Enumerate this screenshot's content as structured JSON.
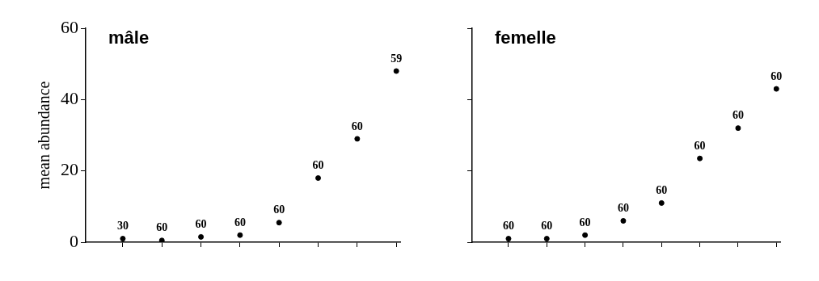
{
  "chart_data": [
    {
      "type": "scatter",
      "title": "mâle",
      "y_label": "mean abundance",
      "categories": [
        null,
        null,
        null,
        null,
        null,
        null,
        null,
        null
      ],
      "values": [
        1,
        0.5,
        1.5,
        2,
        5.5,
        18,
        29,
        48
      ],
      "sample_sizes": [
        30,
        60,
        60,
        60,
        60,
        60,
        60,
        59
      ],
      "color": "#000000",
      "marker": "circle",
      "ylim": [
        0,
        60
      ],
      "yticks": [
        0,
        20,
        40,
        60
      ],
      "grid": false,
      "tick_labels": "y"
    },
    {
      "type": "scatter",
      "title": "femelle",
      "categories": [
        null,
        null,
        null,
        null,
        null,
        null,
        null,
        null
      ],
      "values": [
        1,
        1,
        2,
        6,
        11,
        23.5,
        32,
        43
      ],
      "sample_sizes": [
        60,
        60,
        60,
        60,
        60,
        60,
        60,
        60
      ],
      "color": "#000000",
      "marker": "circle",
      "ylim": [
        0,
        60
      ],
      "yticks": [
        0,
        20,
        40,
        60
      ],
      "grid": false,
      "tick_labels": false
    }
  ]
}
